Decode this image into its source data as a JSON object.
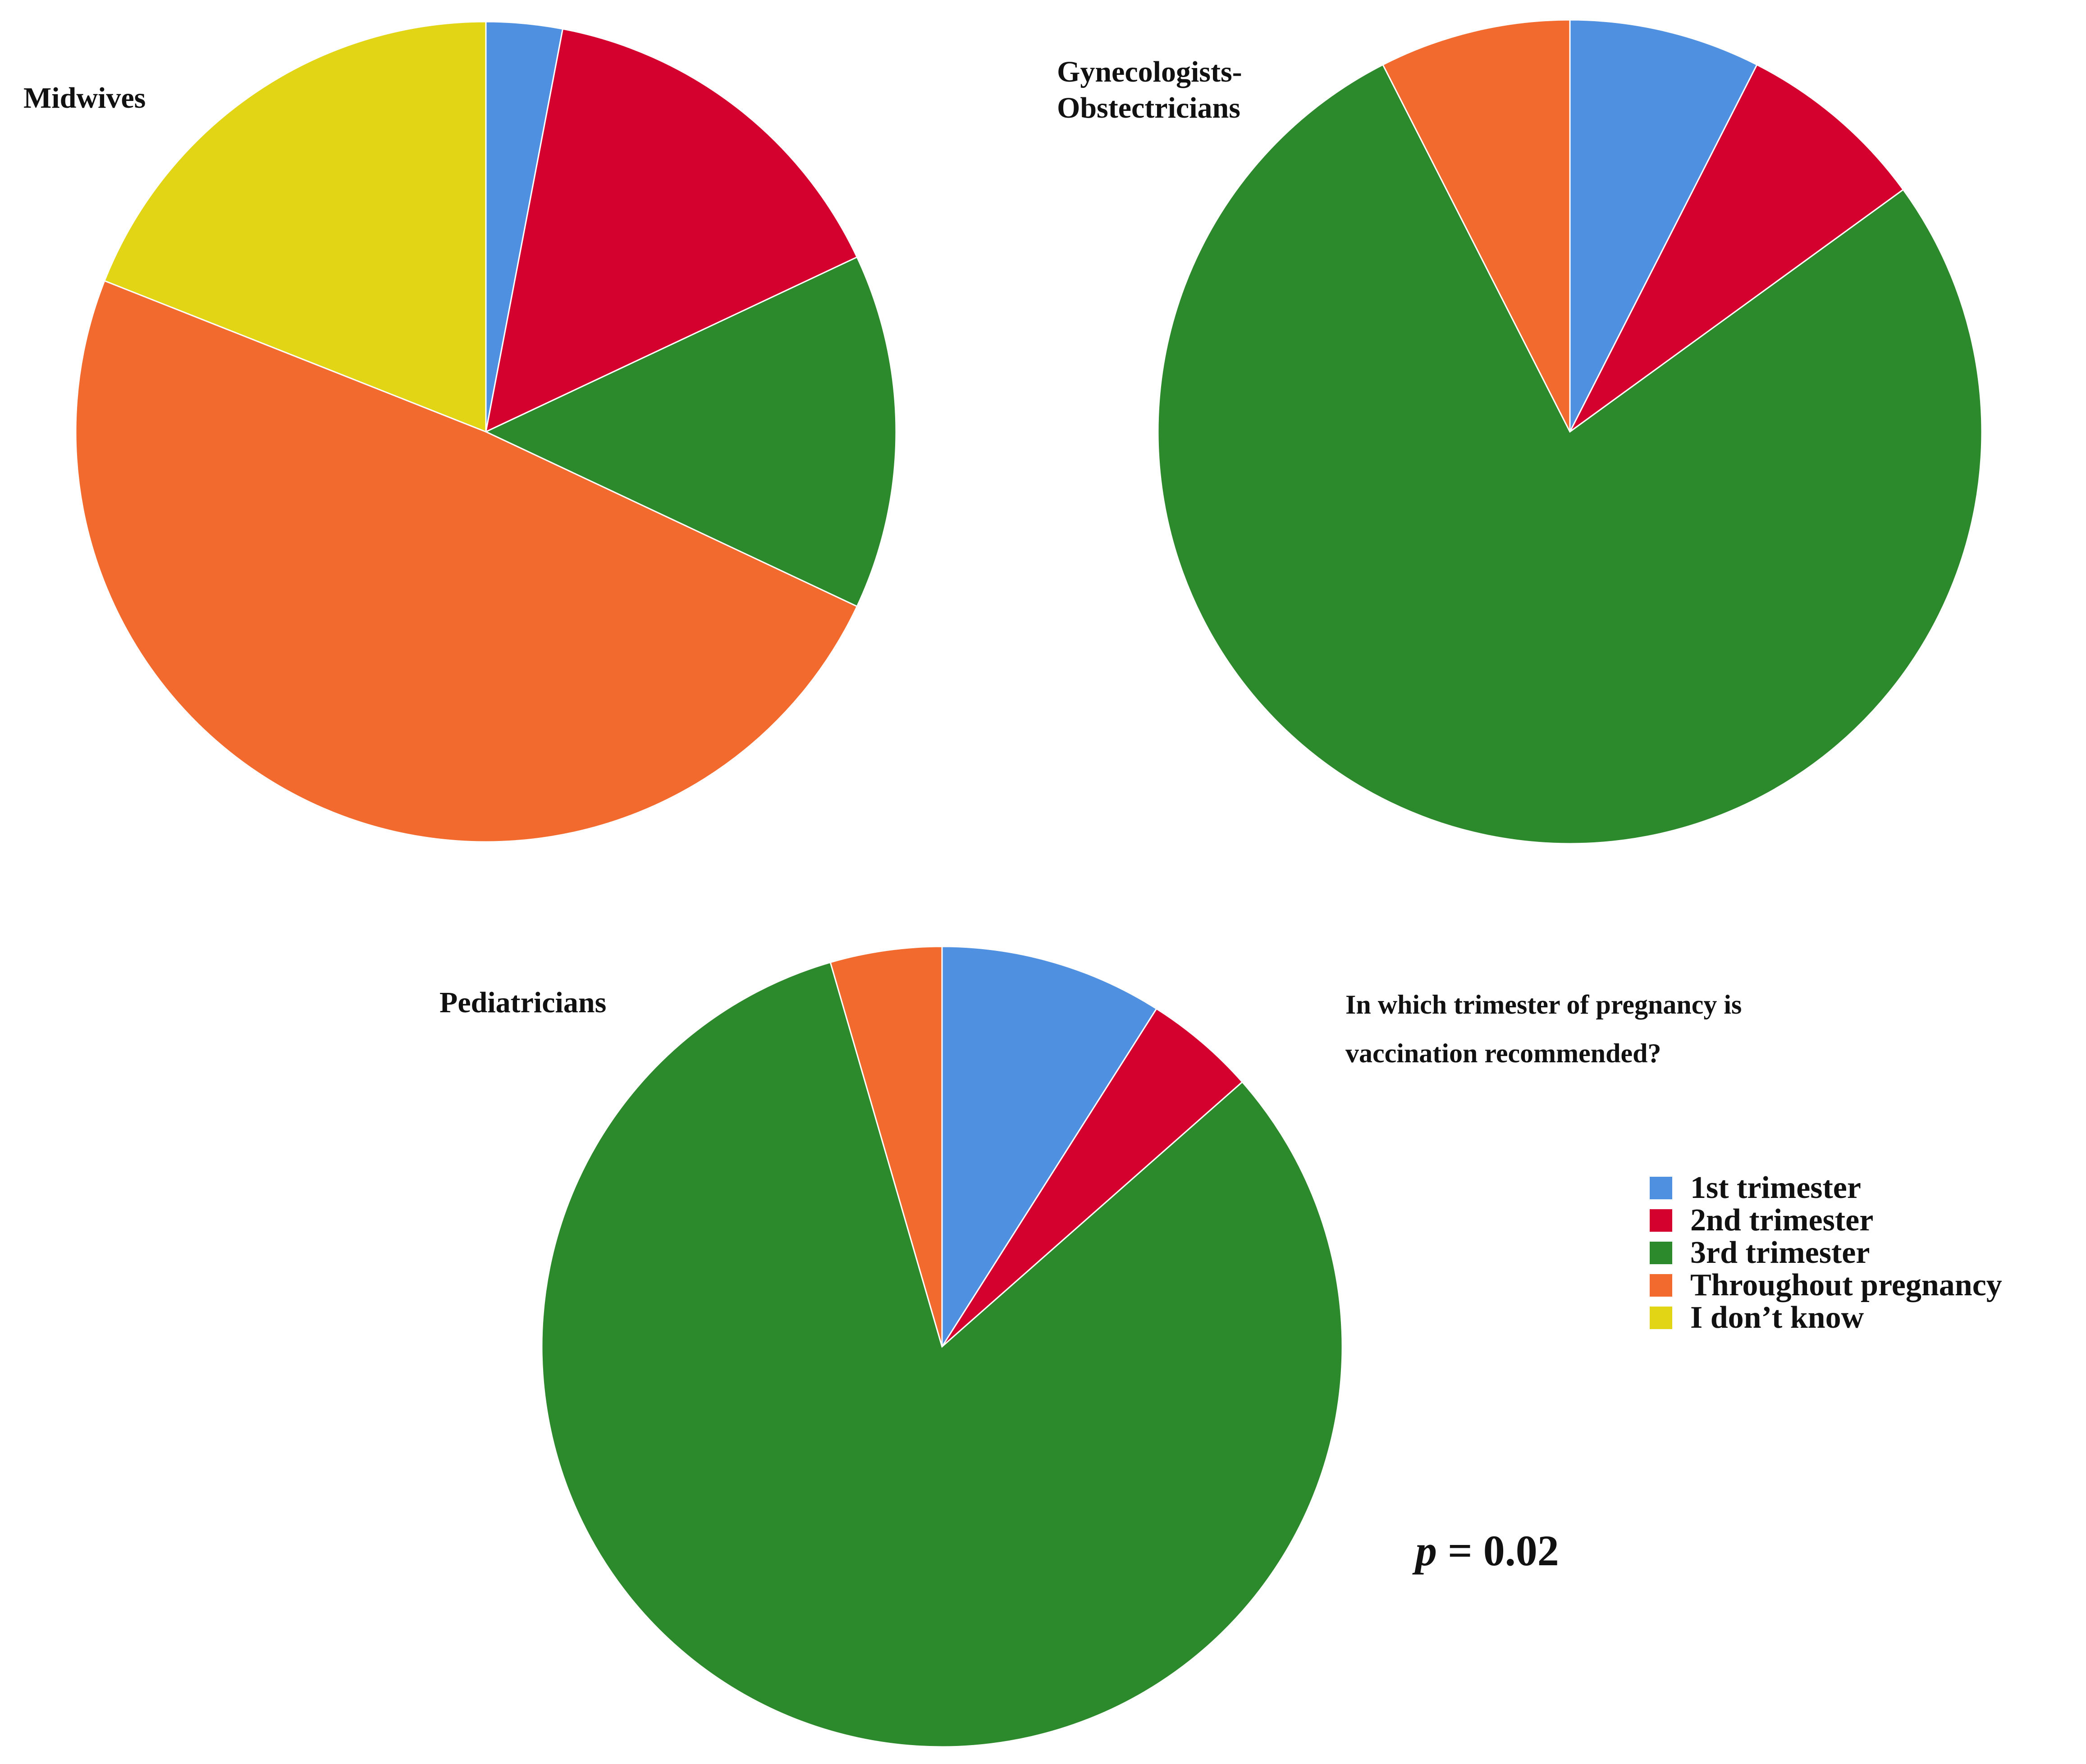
{
  "chart_data": [
    {
      "type": "pie",
      "title": "Midwives",
      "categories": [
        "1st trimester",
        "2nd trimester",
        "3rd trimester",
        "Throughout pregnancy",
        "I don’t know"
      ],
      "values": [
        3,
        15,
        14,
        49,
        19
      ]
    },
    {
      "type": "pie",
      "title": "Gynecologists-\nObstectricians",
      "categories": [
        "1st trimester",
        "2nd trimester",
        "3rd trimester",
        "Throughout pregnancy",
        "I don’t know"
      ],
      "values": [
        7.5,
        7.5,
        77.5,
        7.5,
        0
      ]
    },
    {
      "type": "pie",
      "title": "Pediatricians",
      "categories": [
        "1st trimester",
        "2nd trimester",
        "3rd trimester",
        "Throughout pregnancy",
        "I don’t know"
      ],
      "values": [
        9,
        4.5,
        82,
        4.5,
        0
      ]
    }
  ],
  "question": "In which trimester of pregnancy is vaccination recommended?",
  "legend": [
    {
      "label": "1st trimester",
      "color": "#5090e0"
    },
    {
      "label": "2nd trimester",
      "color": "#d4002e"
    },
    {
      "label": "3rd trimester",
      "color": "#2c8a2c"
    },
    {
      "label": "Throughout pregnancy",
      "color": "#f26a2e"
    },
    {
      "label": "I don’t know",
      "color": "#e2d516"
    }
  ],
  "p_value": {
    "symbol": "p",
    "text": " = 0.02"
  }
}
